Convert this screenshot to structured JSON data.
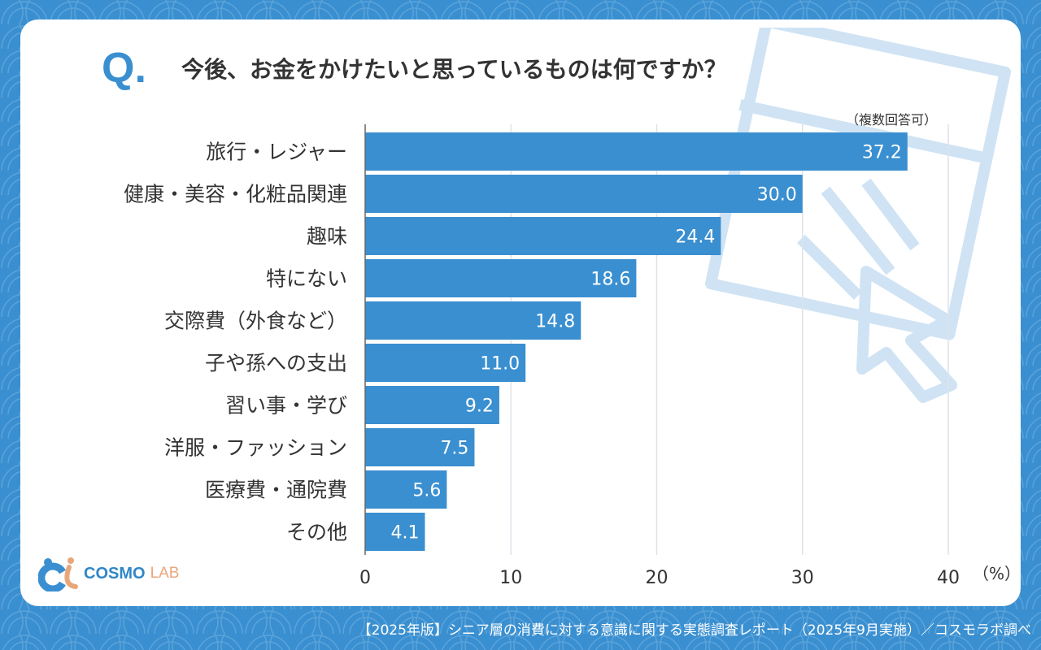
{
  "header": {
    "q_mark": "Q.",
    "title": "今後、お金をかけたいと思っているものは何ですか？",
    "note": "（複数回答可）"
  },
  "chart_data": {
    "type": "bar",
    "orientation": "horizontal",
    "title": "今後、お金をかけたいと思っているものは何ですか？",
    "categories": [
      "旅行・レジャー",
      "健康・美容・化粧品関連",
      "趣味",
      "特にない",
      "交際費（外食など）",
      "子や孫への支出",
      "習い事・学び",
      "洋服・ファッション",
      "医療費・通院費",
      "その他"
    ],
    "values": [
      37.2,
      30.0,
      24.4,
      18.6,
      14.8,
      11.0,
      9.2,
      7.5,
      5.6,
      4.1
    ],
    "value_labels": [
      "37.2",
      "30.0",
      "24.4",
      "18.6",
      "14.8",
      "11.0",
      "9.2",
      "7.5",
      "5.6",
      "4.1"
    ],
    "xlabel": "（%）",
    "xlim": [
      0,
      40
    ],
    "xticks": [
      "0",
      "10",
      "20",
      "30",
      "40"
    ],
    "grid": true,
    "bar_color": "#3a8fd0"
  },
  "logo": {
    "text1": "COSMO",
    "text2": "LAB"
  },
  "footer": {
    "text": "【2025年版】シニア層の消費に対する意識に関する実態調査レポート（2025年9月実施）／コスモラボ調べ"
  }
}
